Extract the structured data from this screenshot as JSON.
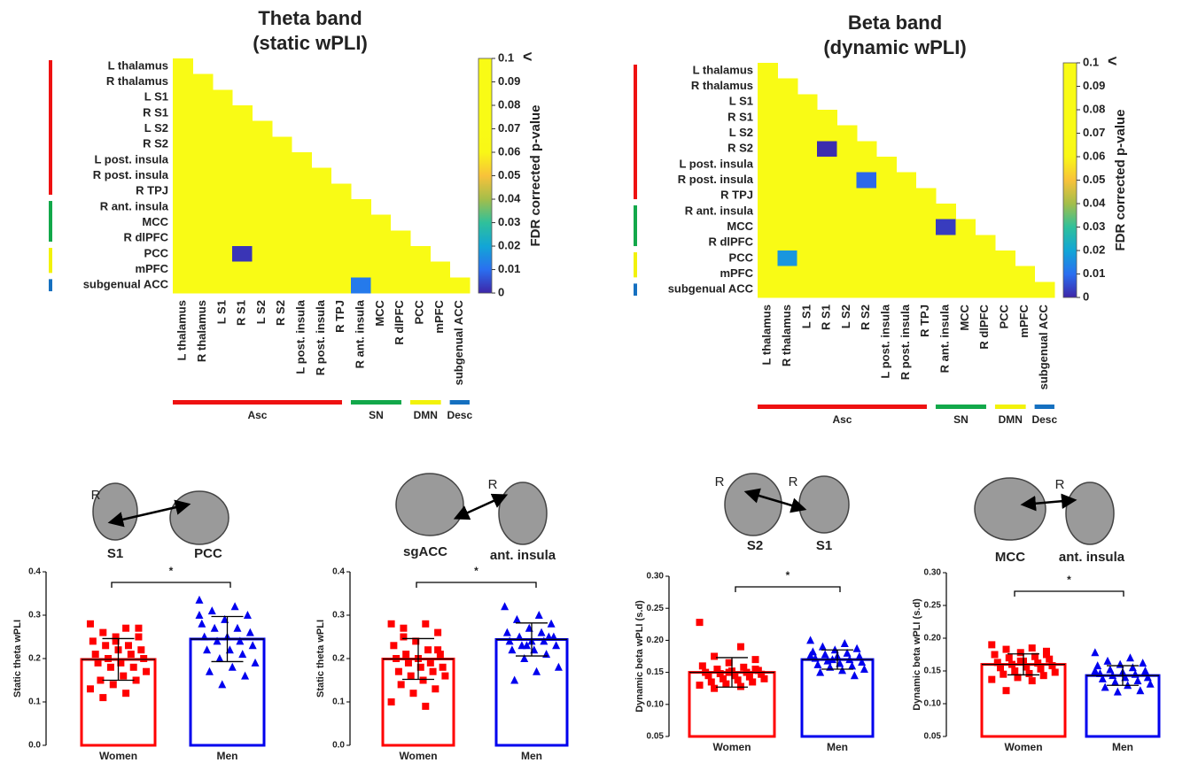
{
  "chart_data": [
    {
      "type": "heatmap",
      "title": [
        "Theta band",
        "(static wPLI)"
      ],
      "row_labels": [
        "L thalamus",
        "R thalamus",
        "L S1",
        "R S1",
        "L S2",
        "R S2",
        "L post. insula",
        "R post. insula",
        "R TPJ",
        "R ant. insula",
        "MCC",
        "R dlPFC",
        "PCC",
        "mPFC",
        "subgenual ACC"
      ],
      "col_labels": [
        "L thalamus",
        "R thalamus",
        "L S1",
        "R S1",
        "L S2",
        "R S2",
        "L post. insula",
        "R post. insula",
        "R TPJ",
        "R ant. insula",
        "MCC",
        "R dlPFC",
        "PCC",
        "mPFC",
        "subgenual ACC"
      ],
      "values": [
        [
          0.1
        ],
        [
          0.1,
          0.1
        ],
        [
          0.1,
          0.1,
          0.1
        ],
        [
          0.1,
          0.1,
          0.1,
          0.1
        ],
        [
          0.1,
          0.1,
          0.1,
          0.1,
          0.1
        ],
        [
          0.1,
          0.1,
          0.1,
          0.1,
          0.1,
          0.1
        ],
        [
          0.1,
          0.1,
          0.1,
          0.1,
          0.1,
          0.1,
          0.1
        ],
        [
          0.1,
          0.1,
          0.1,
          0.1,
          0.1,
          0.1,
          0.1,
          0.1
        ],
        [
          0.1,
          0.1,
          0.1,
          0.1,
          0.1,
          0.1,
          0.1,
          0.1,
          0.1
        ],
        [
          0.1,
          0.1,
          0.1,
          0.1,
          0.1,
          0.1,
          0.1,
          0.1,
          0.1,
          0.1
        ],
        [
          0.1,
          0.1,
          0.1,
          0.1,
          0.1,
          0.1,
          0.1,
          0.1,
          0.1,
          0.1,
          0.1
        ],
        [
          0.1,
          0.1,
          0.1,
          0.1,
          0.1,
          0.1,
          0.1,
          0.1,
          0.1,
          0.1,
          0.1,
          0.1
        ],
        [
          0.1,
          0.1,
          0.1,
          0.002,
          0.1,
          0.1,
          0.1,
          0.1,
          0.1,
          0.1,
          0.1,
          0.1,
          0.1
        ],
        [
          0.1,
          0.1,
          0.1,
          0.1,
          0.1,
          0.1,
          0.1,
          0.1,
          0.1,
          0.1,
          0.1,
          0.1,
          0.1,
          0.1
        ],
        [
          0.1,
          0.1,
          0.1,
          0.1,
          0.1,
          0.1,
          0.1,
          0.1,
          0.1,
          0.012,
          0.1,
          0.1,
          0.1,
          0.1,
          0.1
        ]
      ],
      "groups": [
        {
          "name": "Asc",
          "color": "#ee1111",
          "size": 9
        },
        {
          "name": "SN",
          "color": "#12a84a",
          "size": 3
        },
        {
          "name": "DMN",
          "color": "#f2f20a",
          "size": 2
        },
        {
          "name": "Desc",
          "color": "#1570c0",
          "size": 1
        }
      ],
      "colorbar": {
        "label": "FDR corrected p-value",
        "ylim": [
          0,
          0.1
        ],
        "yticks": [
          0,
          0.01,
          0.02,
          0.03,
          0.04,
          0.05,
          0.06,
          0.07,
          0.08,
          0.09,
          0.1
        ],
        "max_marker": "<",
        "colormap": [
          "#3e26a8",
          "#2a6ff0",
          "#12a6d6",
          "#2fc09b",
          "#a4be4a",
          "#f8c23a",
          "#f9f716",
          "#f9fb15",
          "#f9fb15",
          "#f9fb15",
          "#f9fb15"
        ]
      }
    },
    {
      "type": "heatmap",
      "title": [
        "Beta band",
        "(dynamic wPLI)"
      ],
      "row_labels": [
        "L thalamus",
        "R thalamus",
        "L S1",
        "R S1",
        "L S2",
        "R S2",
        "L post. insula",
        "R post. insula",
        "R TPJ",
        "R ant. insula",
        "MCC",
        "R dlPFC",
        "PCC",
        "mPFC",
        "subgenual ACC"
      ],
      "col_labels": [
        "L thalamus",
        "R thalamus",
        "L S1",
        "R S1",
        "L S2",
        "R S2",
        "L post. insula",
        "R post. insula",
        "R TPJ",
        "R ant. insula",
        "MCC",
        "R dlPFC",
        "PCC",
        "mPFC",
        "subgenual ACC"
      ],
      "values": [
        [
          0.1
        ],
        [
          0.1,
          0.1
        ],
        [
          0.1,
          0.1,
          0.1
        ],
        [
          0.1,
          0.1,
          0.1,
          0.1
        ],
        [
          0.1,
          0.1,
          0.1,
          0.1,
          0.1
        ],
        [
          0.1,
          0.1,
          0.1,
          0.001,
          0.1,
          0.1
        ],
        [
          0.1,
          0.1,
          0.1,
          0.1,
          0.1,
          0.1,
          0.1
        ],
        [
          0.1,
          0.1,
          0.1,
          0.1,
          0.1,
          0.009,
          0.1,
          0.1
        ],
        [
          0.1,
          0.1,
          0.1,
          0.1,
          0.1,
          0.1,
          0.1,
          0.1,
          0.1
        ],
        [
          0.1,
          0.1,
          0.1,
          0.1,
          0.1,
          0.1,
          0.1,
          0.1,
          0.1,
          0.1
        ],
        [
          0.1,
          0.1,
          0.1,
          0.1,
          0.1,
          0.1,
          0.1,
          0.1,
          0.1,
          0.003,
          0.1
        ],
        [
          0.1,
          0.1,
          0.1,
          0.1,
          0.1,
          0.1,
          0.1,
          0.1,
          0.1,
          0.1,
          0.1,
          0.1
        ],
        [
          0.1,
          0.017,
          0.1,
          0.1,
          0.1,
          0.1,
          0.1,
          0.1,
          0.1,
          0.1,
          0.1,
          0.1,
          0.1
        ],
        [
          0.1,
          0.1,
          0.1,
          0.1,
          0.1,
          0.1,
          0.1,
          0.1,
          0.1,
          0.1,
          0.1,
          0.1,
          0.1,
          0.1
        ],
        [
          0.1,
          0.1,
          0.1,
          0.1,
          0.1,
          0.1,
          0.1,
          0.1,
          0.1,
          0.1,
          0.1,
          0.1,
          0.1,
          0.1,
          0.1
        ]
      ],
      "groups": [
        {
          "name": "Asc",
          "color": "#ee1111",
          "size": 9
        },
        {
          "name": "SN",
          "color": "#12a84a",
          "size": 3
        },
        {
          "name": "DMN",
          "color": "#f2f20a",
          "size": 2
        },
        {
          "name": "Desc",
          "color": "#1570c0",
          "size": 1
        }
      ],
      "colorbar": {
        "label": "FDR corrected p-value",
        "ylim": [
          0,
          0.1
        ],
        "yticks": [
          0,
          0.01,
          0.02,
          0.03,
          0.04,
          0.05,
          0.06,
          0.07,
          0.08,
          0.09,
          0.1
        ],
        "max_marker": "<",
        "colormap": [
          "#3e26a8",
          "#2a6ff0",
          "#12a6d6",
          "#2fc09b",
          "#a4be4a",
          "#f8c23a",
          "#f9f716",
          "#f9fb15",
          "#f9fb15",
          "#f9fb15",
          "#f9fb15"
        ]
      }
    },
    {
      "type": "bar",
      "ylabel": "Static theta wPLI",
      "categories": [
        "Women",
        "Men"
      ],
      "values": [
        0.198,
        0.245
      ],
      "errors": [
        0.048,
        0.052
      ],
      "colors": [
        "#ff0000",
        "#0000ee"
      ],
      "markers": [
        "square",
        "triangle"
      ],
      "points": [
        [
          0.28,
          0.27,
          0.26,
          0.25,
          0.25,
          0.24,
          0.23,
          0.23,
          0.22,
          0.22,
          0.21,
          0.21,
          0.2,
          0.2,
          0.19,
          0.19,
          0.18,
          0.18,
          0.17,
          0.16,
          0.15,
          0.15,
          0.14,
          0.13,
          0.12,
          0.11,
          0.27,
          0.24
        ],
        [
          0.335,
          0.32,
          0.31,
          0.3,
          0.29,
          0.28,
          0.27,
          0.27,
          0.26,
          0.25,
          0.25,
          0.24,
          0.24,
          0.23,
          0.22,
          0.22,
          0.21,
          0.2,
          0.19,
          0.18,
          0.17,
          0.16,
          0.14,
          0.3
        ]
      ],
      "ylim": [
        0,
        0.4
      ],
      "yticks": [
        {
          "value": 0,
          "label": "0.0"
        },
        0.1,
        0.2,
        0.3,
        0.4
      ],
      "significance": "*",
      "brain_labels": [
        "R",
        "S1",
        "PCC"
      ]
    },
    {
      "type": "bar",
      "ylabel": "Static theta wPLI",
      "categories": [
        "Women",
        "Men"
      ],
      "values": [
        0.199,
        0.244
      ],
      "errors": [
        0.047,
        0.038
      ],
      "colors": [
        "#ff0000",
        "#0000ee"
      ],
      "markers": [
        "square",
        "triangle"
      ],
      "points": [
        [
          0.28,
          0.28,
          0.27,
          0.26,
          0.24,
          0.23,
          0.22,
          0.21,
          0.21,
          0.2,
          0.2,
          0.19,
          0.19,
          0.18,
          0.18,
          0.17,
          0.17,
          0.16,
          0.16,
          0.15,
          0.14,
          0.13,
          0.12,
          0.1,
          0.09,
          0.25,
          0.22
        ],
        [
          0.32,
          0.3,
          0.29,
          0.28,
          0.27,
          0.26,
          0.26,
          0.25,
          0.25,
          0.24,
          0.24,
          0.24,
          0.23,
          0.23,
          0.22,
          0.22,
          0.21,
          0.2,
          0.18,
          0.17,
          0.15,
          0.25,
          0.23
        ]
      ],
      "ylim": [
        0,
        0.4
      ],
      "yticks": [
        {
          "value": 0,
          "label": "0.0"
        },
        0.1,
        0.2,
        0.3,
        0.4
      ],
      "significance": "*",
      "brain_labels": [
        "R",
        "sgACC",
        "ant. insula"
      ]
    },
    {
      "type": "bar",
      "ylabel": "Dynamic beta wPLI (s.d)",
      "categories": [
        "Women",
        "Men"
      ],
      "values": [
        0.15,
        0.17
      ],
      "errors": [
        0.023,
        0.015
      ],
      "colors": [
        "#ff0000",
        "#0000ee"
      ],
      "markers": [
        "square",
        "triangle"
      ],
      "points": [
        [
          0.228,
          0.19,
          0.175,
          0.17,
          0.165,
          0.16,
          0.158,
          0.155,
          0.153,
          0.152,
          0.15,
          0.15,
          0.148,
          0.147,
          0.145,
          0.145,
          0.143,
          0.14,
          0.14,
          0.138,
          0.135,
          0.135,
          0.132,
          0.13,
          0.128,
          0.125,
          0.155,
          0.15
        ],
        [
          0.2,
          0.195,
          0.19,
          0.187,
          0.185,
          0.182,
          0.18,
          0.178,
          0.175,
          0.175,
          0.172,
          0.17,
          0.168,
          0.166,
          0.164,
          0.162,
          0.16,
          0.158,
          0.155,
          0.153,
          0.15,
          0.145,
          0.17,
          0.176
        ]
      ],
      "ylim": [
        0.05,
        0.3
      ],
      "yticks": [
        0.05,
        {
          "value": 0.1,
          "label": "0.10"
        },
        0.15,
        {
          "value": 0.2,
          "label": "0.20"
        },
        0.25,
        {
          "value": 0.3,
          "label": "0.30"
        }
      ],
      "significance": "*",
      "brain_labels": [
        "R",
        "R",
        "S2",
        "S1"
      ]
    },
    {
      "type": "bar",
      "ylabel": "Dynamic beta wPLI (s.d)",
      "categories": [
        "Women",
        "Men"
      ],
      "values": [
        0.16,
        0.143
      ],
      "errors": [
        0.016,
        0.015
      ],
      "colors": [
        "#ff0000",
        "#0000ee"
      ],
      "markers": [
        "square",
        "triangle"
      ],
      "points": [
        [
          0.19,
          0.185,
          0.183,
          0.18,
          0.178,
          0.175,
          0.172,
          0.17,
          0.168,
          0.165,
          0.163,
          0.162,
          0.16,
          0.158,
          0.156,
          0.155,
          0.153,
          0.15,
          0.148,
          0.146,
          0.145,
          0.143,
          0.14,
          0.137,
          0.135,
          0.12,
          0.175,
          0.165
        ],
        [
          0.178,
          0.17,
          0.165,
          0.162,
          0.16,
          0.158,
          0.155,
          0.152,
          0.15,
          0.148,
          0.146,
          0.145,
          0.143,
          0.14,
          0.14,
          0.138,
          0.135,
          0.133,
          0.13,
          0.128,
          0.125,
          0.12,
          0.118,
          0.15
        ]
      ],
      "ylim": [
        0.05,
        0.3
      ],
      "yticks": [
        0.05,
        {
          "value": 0.1,
          "label": "0.10"
        },
        0.15,
        {
          "value": 0.2,
          "label": "0.20"
        },
        0.25,
        {
          "value": 0.3,
          "label": "0.30"
        }
      ],
      "significance": "*",
      "brain_labels": [
        "R",
        "MCC",
        "ant. insula"
      ]
    }
  ]
}
